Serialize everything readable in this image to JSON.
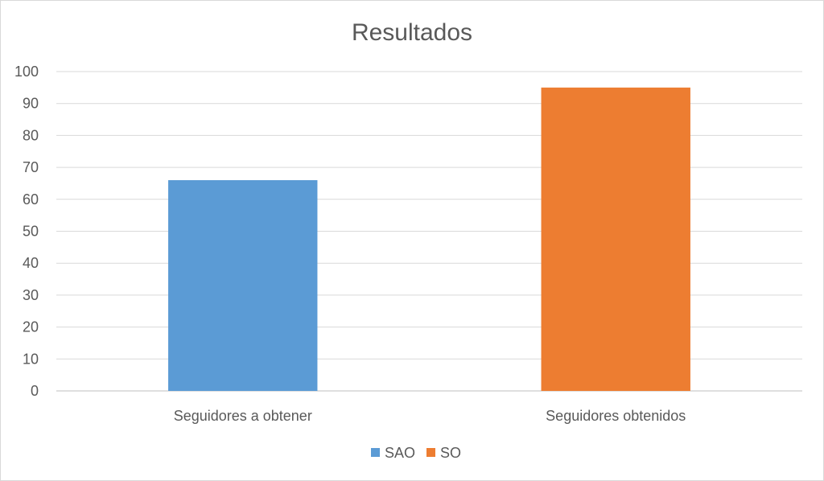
{
  "chart_data": {
    "type": "bar",
    "title": "Resultados",
    "categories": [
      "Seguidores a obtener",
      "Seguidores obtenidos"
    ],
    "series": [
      {
        "name": "SAO",
        "color": "#5b9bd5",
        "category": "Seguidores a obtener",
        "value": 66
      },
      {
        "name": "SO",
        "color": "#ed7d31",
        "category": "Seguidores obtenidos",
        "value": 95
      }
    ],
    "ylim": [
      0,
      100
    ],
    "yticks": [
      0,
      10,
      20,
      30,
      40,
      50,
      60,
      70,
      80,
      90,
      100
    ],
    "grid": true,
    "legend_position": "bottom",
    "xlabel": "",
    "ylabel": ""
  }
}
